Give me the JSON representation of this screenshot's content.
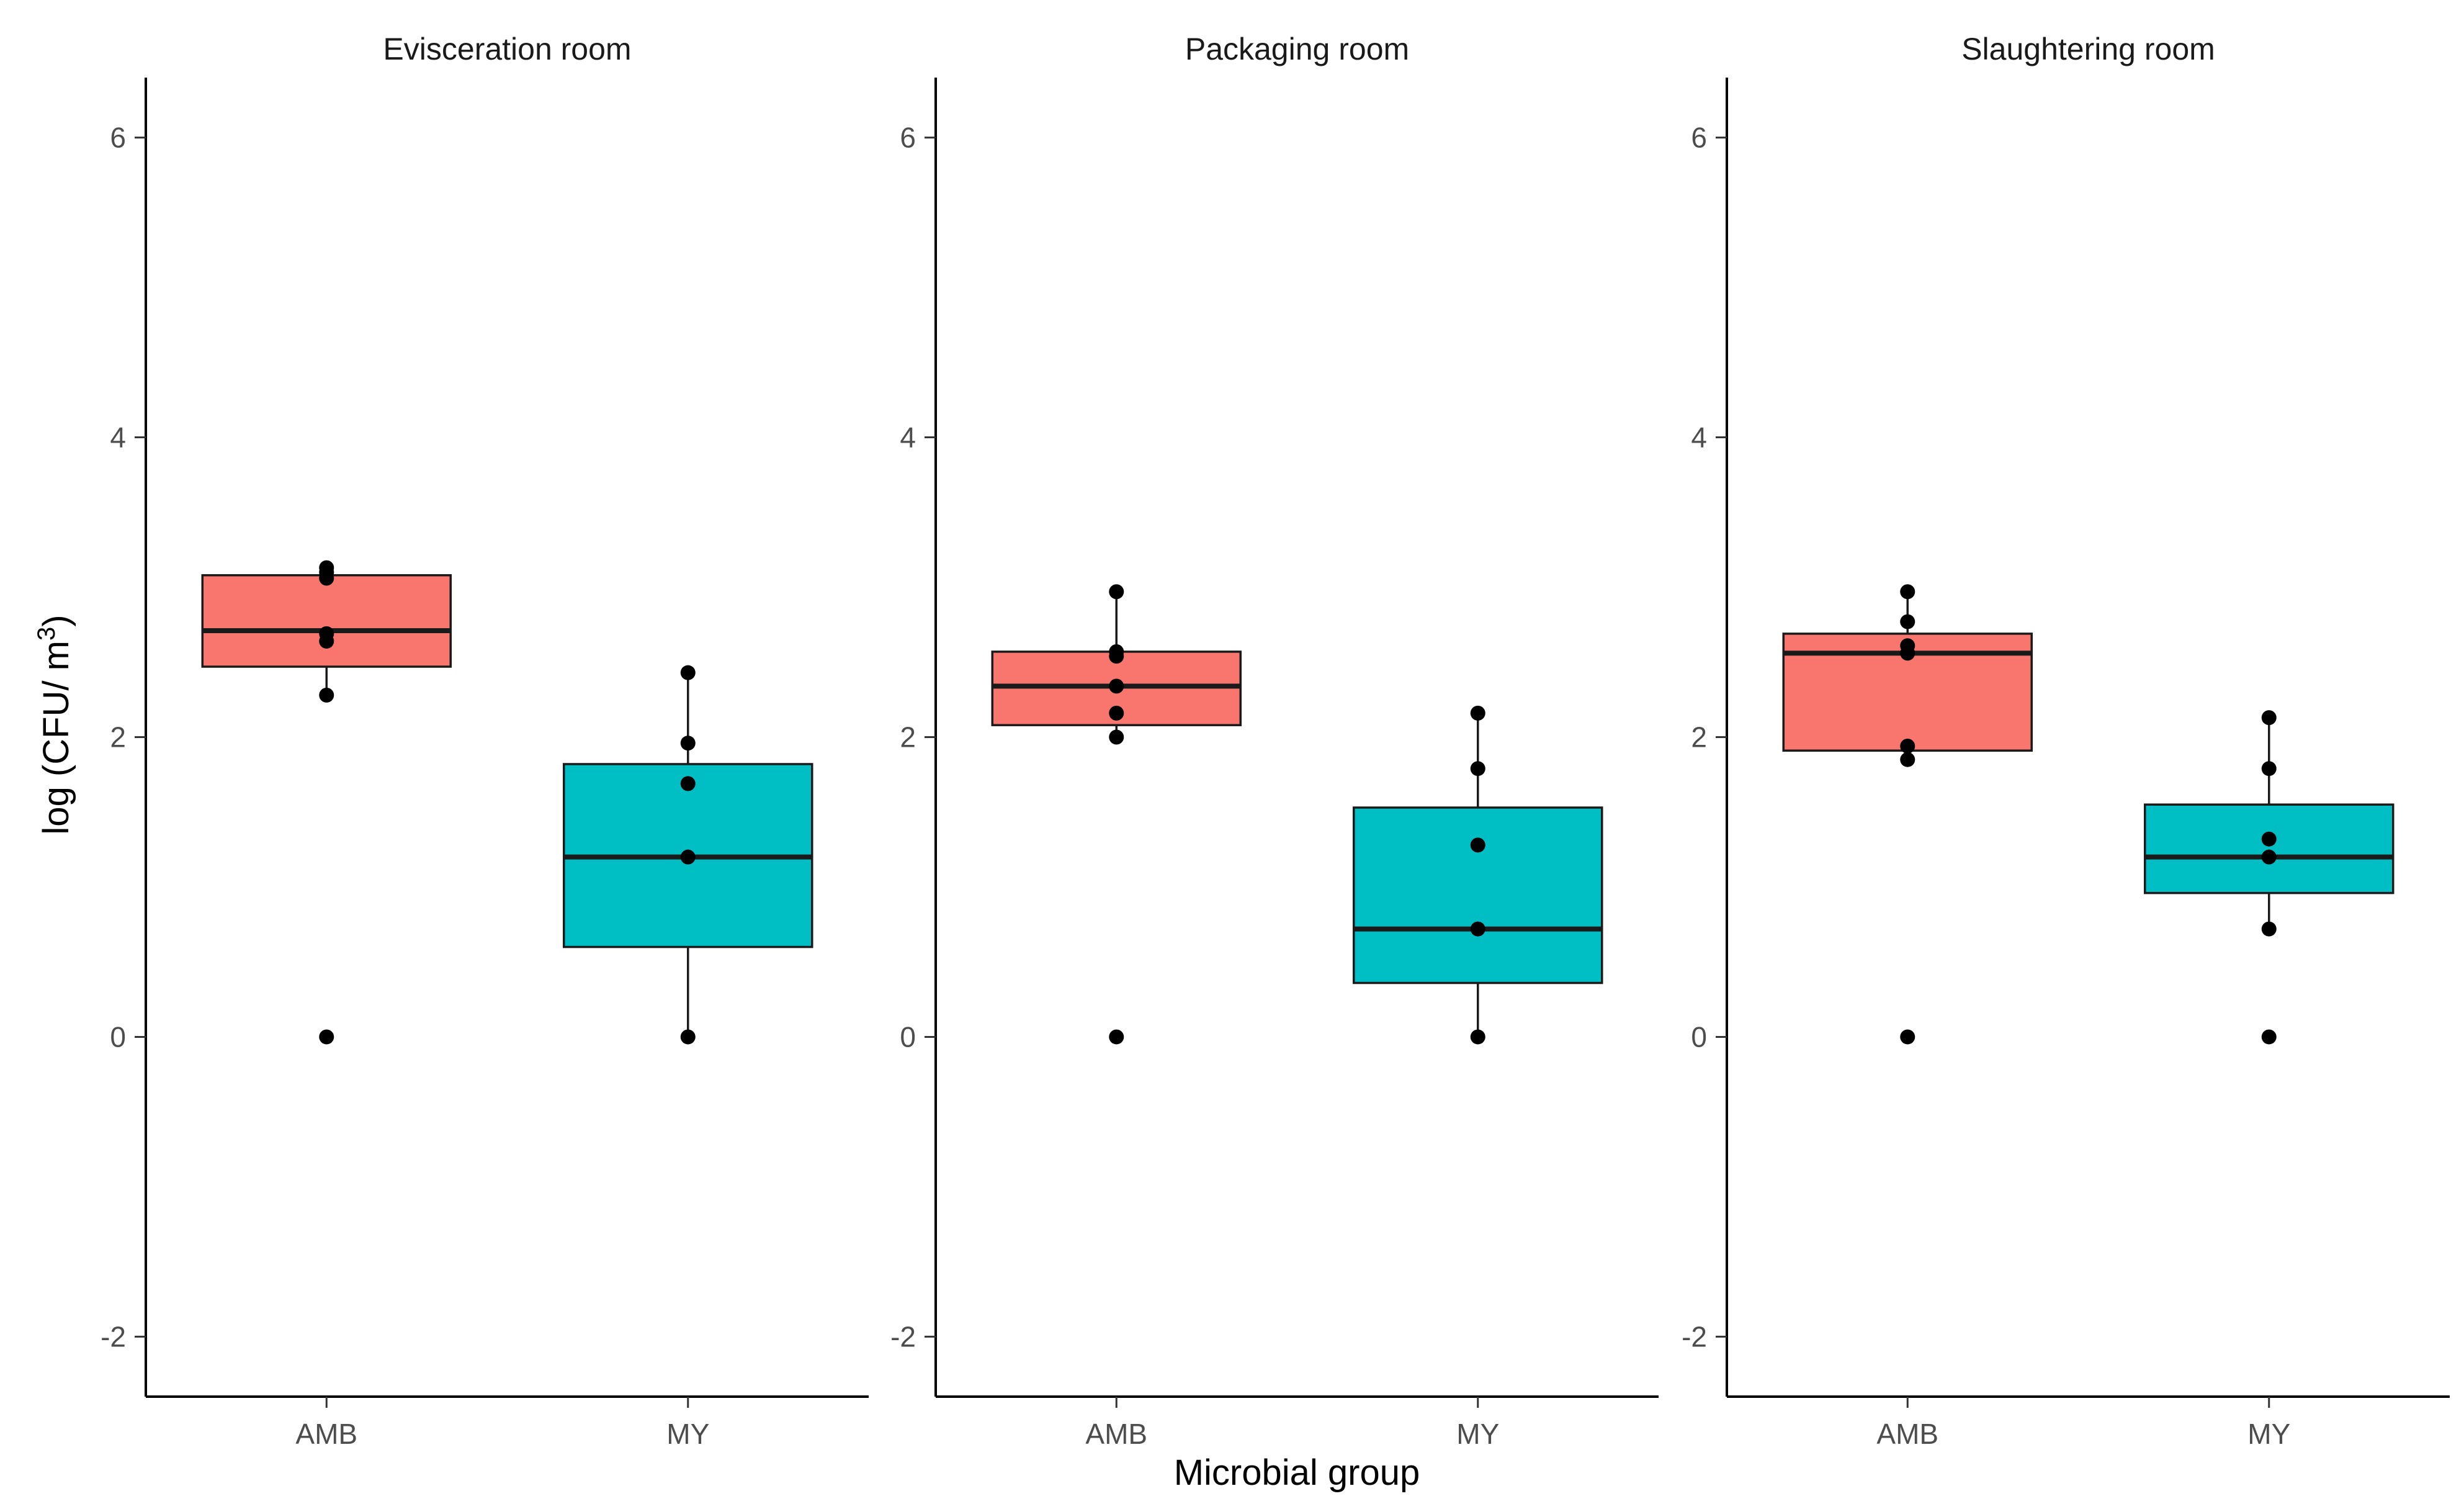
{
  "chart_data": {
    "type": "boxplot",
    "xlabel": "Microbial group",
    "ylabel_prefix": "log (CFU/ m",
    "ylabel_superscript": "3",
    "ylabel_suffix": ")",
    "ylim": [
      -2.4,
      6.4
    ],
    "yticks": [
      -2,
      0,
      2,
      4,
      6
    ],
    "categories": [
      "AMB",
      "MY"
    ],
    "colors": {
      "AMB": "#F8766D",
      "MY": "#00BFC4"
    },
    "facets": [
      {
        "title": "Evisceration room",
        "groups": [
          {
            "name": "AMB",
            "q1": 2.47,
            "median": 2.71,
            "q3": 3.08,
            "whisker_low": 2.28,
            "whisker_high": 3.13,
            "points": [
              0,
              2.28,
              2.64,
              2.69,
              3.06,
              3.1,
              3.13
            ]
          },
          {
            "name": "MY",
            "q1": 0.6,
            "median": 1.2,
            "q3": 1.82,
            "whisker_low": 0,
            "whisker_high": 2.43,
            "points": [
              0,
              1.2,
              1.69,
              1.96,
              2.43
            ]
          }
        ]
      },
      {
        "title": "Packaging room",
        "groups": [
          {
            "name": "AMB",
            "q1": 2.08,
            "median": 2.34,
            "q3": 2.57,
            "whisker_low": 2.0,
            "whisker_high": 2.97,
            "points": [
              0,
              2.0,
              2.16,
              2.34,
              2.54,
              2.57,
              2.97
            ]
          },
          {
            "name": "MY",
            "q1": 0.36,
            "median": 0.72,
            "q3": 1.53,
            "whisker_low": 0,
            "whisker_high": 2.16,
            "points": [
              0,
              0.72,
              1.28,
              1.79,
              2.16
            ]
          }
        ]
      },
      {
        "title": "Slaughtering room",
        "groups": [
          {
            "name": "AMB",
            "q1": 1.91,
            "median": 2.56,
            "q3": 2.69,
            "whisker_low": 1.85,
            "whisker_high": 2.97,
            "points": [
              0,
              1.85,
              1.94,
              2.56,
              2.61,
              2.77,
              2.97
            ]
          },
          {
            "name": "MY",
            "q1": 0.96,
            "median": 1.2,
            "q3": 1.55,
            "whisker_low": 0.72,
            "whisker_high": 2.13,
            "points": [
              0,
              0.72,
              1.2,
              1.32,
              1.79,
              2.13
            ]
          }
        ]
      }
    ]
  }
}
